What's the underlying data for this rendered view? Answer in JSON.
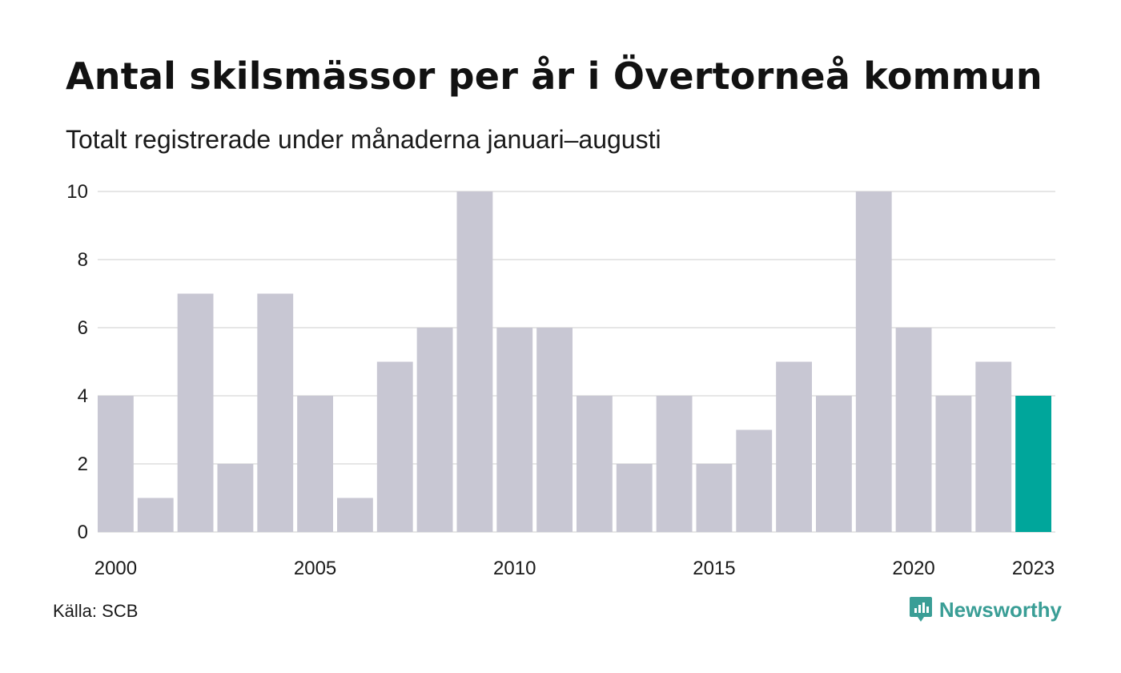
{
  "title": "Antal skilsmässor per år i Övertorneå kommun",
  "subtitle": "Totalt registrerade under månaderna januari–augusti",
  "source": "Källa: SCB",
  "brand": {
    "name": "Newsworthy",
    "icon": "newsworthy-logo-icon",
    "color": "#3a9e96"
  },
  "colors": {
    "bar": "#c8c7d3",
    "highlight": "#00a69b",
    "grid": "#e6e6e6"
  },
  "chart_data": {
    "type": "bar",
    "categories": [
      "2000",
      "2001",
      "2002",
      "2003",
      "2004",
      "2005",
      "2006",
      "2007",
      "2008",
      "2009",
      "2010",
      "2011",
      "2012",
      "2013",
      "2014",
      "2015",
      "2016",
      "2017",
      "2018",
      "2019",
      "2020",
      "2021",
      "2022",
      "2023"
    ],
    "values": [
      4,
      1,
      7,
      2,
      7,
      4,
      1,
      5,
      6,
      10,
      6,
      6,
      4,
      2,
      4,
      2,
      3,
      5,
      4,
      10,
      6,
      4,
      5,
      4
    ],
    "highlight_category": "2023",
    "x_tick_labels": [
      "2000",
      "2005",
      "2010",
      "2015",
      "2020",
      "2023"
    ],
    "y_ticks": [
      0,
      2,
      4,
      6,
      8,
      10
    ],
    "ylim": [
      0,
      10
    ],
    "grid": true,
    "xlabel": "",
    "ylabel": ""
  }
}
